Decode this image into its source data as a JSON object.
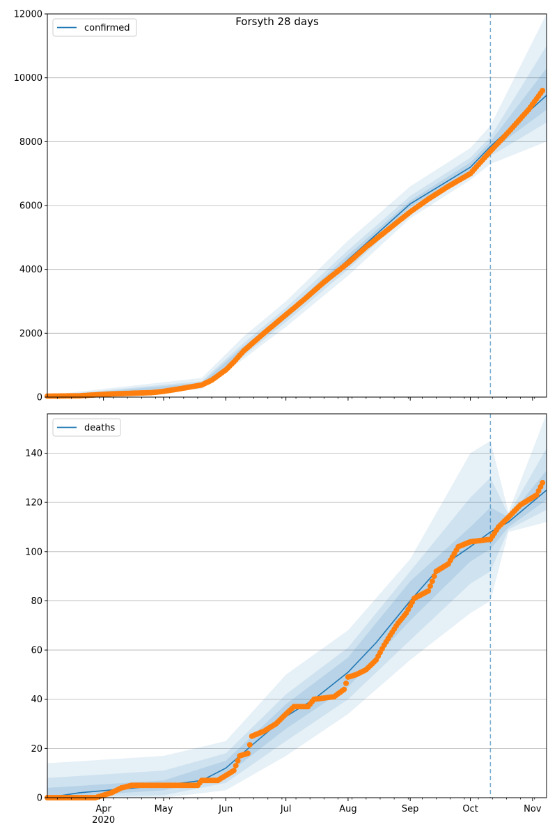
{
  "chart_data": [
    {
      "type": "line",
      "title": "Forsyth 28 days",
      "ylim": [
        0,
        12000
      ],
      "yticks": [
        0,
        2000,
        4000,
        6000,
        8000,
        10000,
        12000
      ],
      "x_ticks": [
        {
          "date": "2020-04-01",
          "label": "Apr"
        },
        {
          "date": "2020-05-01",
          "label": "May"
        },
        {
          "date": "2020-06-01",
          "label": "Jun"
        },
        {
          "date": "2020-07-01",
          "label": "Jul"
        },
        {
          "date": "2020-08-01",
          "label": "Aug"
        },
        {
          "date": "2020-09-01",
          "label": "Sep"
        },
        {
          "date": "2020-10-01",
          "label": "Oct"
        },
        {
          "date": "2020-11-01",
          "label": "Nov"
        }
      ],
      "year_label": "2020",
      "xlim": [
        "2020-03-04",
        "2020-11-08"
      ],
      "forecast_start": "2020-10-11",
      "grid": "horizontal",
      "legend": {
        "position": "top-left",
        "entries": [
          "confirmed"
        ]
      },
      "colors": {
        "line": "#1f77b4",
        "points": "#ff7f0e",
        "band": "#1f77b4"
      },
      "series": [
        {
          "name": "confirmed",
          "points": [
            [
              "2020-03-04",
              30
            ],
            [
              "2020-03-20",
              40
            ],
            [
              "2020-03-28",
              70
            ],
            [
              "2020-04-05",
              100
            ],
            [
              "2020-04-15",
              120
            ],
            [
              "2020-04-25",
              140
            ],
            [
              "2020-05-01",
              180
            ],
            [
              "2020-05-10",
              270
            ],
            [
              "2020-05-20",
              380
            ],
            [
              "2020-05-25",
              530
            ],
            [
              "2020-06-01",
              850
            ],
            [
              "2020-06-05",
              1100
            ],
            [
              "2020-06-10",
              1450
            ],
            [
              "2020-06-20",
              2000
            ],
            [
              "2020-07-01",
              2580
            ],
            [
              "2020-07-10",
              3050
            ],
            [
              "2020-07-20",
              3600
            ],
            [
              "2020-08-01",
              4200
            ],
            [
              "2020-08-10",
              4700
            ],
            [
              "2020-08-20",
              5200
            ],
            [
              "2020-09-01",
              5800
            ],
            [
              "2020-09-10",
              6200
            ],
            [
              "2020-09-20",
              6600
            ],
            [
              "2020-10-01",
              7000
            ],
            [
              "2020-10-11",
              7700
            ],
            [
              "2020-10-20",
              8300
            ],
            [
              "2020-10-30",
              9000
            ],
            [
              "2020-11-06",
              9600
            ]
          ]
        }
      ],
      "fit": [
        [
          "2020-03-04",
          10
        ],
        [
          "2020-04-01",
          60
        ],
        [
          "2020-05-01",
          200
        ],
        [
          "2020-05-20",
          400
        ],
        [
          "2020-06-01",
          900
        ],
        [
          "2020-06-10",
          1500
        ],
        [
          "2020-07-01",
          2550
        ],
        [
          "2020-08-01",
          4300
        ],
        [
          "2020-09-01",
          6050
        ],
        [
          "2020-10-01",
          7200
        ],
        [
          "2020-10-11",
          7850
        ],
        [
          "2020-11-08",
          9450
        ]
      ],
      "bands": [
        [
          [
            "2020-03-04",
            0,
            60
          ],
          [
            "2020-05-20",
            250,
            600
          ],
          [
            "2020-06-10",
            1200,
            1900
          ],
          [
            "2020-07-01",
            2200,
            3000
          ],
          [
            "2020-08-01",
            3800,
            4900
          ],
          [
            "2020-09-01",
            5600,
            6600
          ],
          [
            "2020-10-01",
            6800,
            7800
          ],
          [
            "2020-10-11",
            7300,
            8500
          ],
          [
            "2020-11-08",
            8000,
            12000
          ]
        ],
        [
          [
            "2020-03-04",
            0,
            40
          ],
          [
            "2020-05-20",
            300,
            500
          ],
          [
            "2020-06-10",
            1300,
            1700
          ],
          [
            "2020-07-01",
            2350,
            2800
          ],
          [
            "2020-08-01",
            4000,
            4600
          ],
          [
            "2020-09-01",
            5800,
            6300
          ],
          [
            "2020-10-01",
            7000,
            7500
          ],
          [
            "2020-10-11",
            7550,
            8150
          ],
          [
            "2020-11-08",
            8600,
            11000
          ]
        ],
        [
          [
            "2020-03-04",
            0,
            20
          ],
          [
            "2020-05-20",
            330,
            450
          ],
          [
            "2020-06-10",
            1400,
            1600
          ],
          [
            "2020-07-01",
            2450,
            2650
          ],
          [
            "2020-08-01",
            4150,
            4450
          ],
          [
            "2020-09-01",
            5950,
            6150
          ],
          [
            "2020-10-01",
            7100,
            7350
          ],
          [
            "2020-10-11",
            7700,
            8000
          ],
          [
            "2020-11-08",
            9000,
            10300
          ]
        ]
      ]
    },
    {
      "type": "line",
      "title": "",
      "ylim": [
        0,
        156
      ],
      "yticks": [
        0,
        20,
        40,
        60,
        80,
        100,
        120,
        140
      ],
      "x_ticks": [
        {
          "date": "2020-04-01",
          "label": "Apr"
        },
        {
          "date": "2020-05-01",
          "label": "May"
        },
        {
          "date": "2020-06-01",
          "label": "Jun"
        },
        {
          "date": "2020-07-01",
          "label": "Jul"
        },
        {
          "date": "2020-08-01",
          "label": "Aug"
        },
        {
          "date": "2020-09-01",
          "label": "Sep"
        },
        {
          "date": "2020-10-01",
          "label": "Oct"
        },
        {
          "date": "2020-11-01",
          "label": "Nov"
        }
      ],
      "year_label": "2020",
      "xlim": [
        "2020-03-04",
        "2020-11-08"
      ],
      "forecast_start": "2020-10-11",
      "grid": "horizontal",
      "legend": {
        "position": "top-left",
        "entries": [
          "deaths"
        ]
      },
      "colors": {
        "line": "#1f77b4",
        "points": "#ff7f0e",
        "band": "#1f77b4"
      },
      "series": [
        {
          "name": "deaths",
          "points": [
            [
              "2020-03-04",
              0
            ],
            [
              "2020-03-28",
              0
            ],
            [
              "2020-04-05",
              2
            ],
            [
              "2020-04-10",
              4
            ],
            [
              "2020-04-15",
              5
            ],
            [
              "2020-05-18",
              5
            ],
            [
              "2020-05-20",
              7
            ],
            [
              "2020-05-28",
              7
            ],
            [
              "2020-06-05",
              11
            ],
            [
              "2020-06-08",
              17
            ],
            [
              "2020-06-12",
              18
            ],
            [
              "2020-06-14",
              25
            ],
            [
              "2020-06-20",
              27
            ],
            [
              "2020-06-26",
              30
            ],
            [
              "2020-07-01",
              34
            ],
            [
              "2020-07-05",
              37
            ],
            [
              "2020-07-12",
              37
            ],
            [
              "2020-07-15",
              40
            ],
            [
              "2020-07-25",
              41
            ],
            [
              "2020-07-30",
              44
            ],
            [
              "2020-08-01",
              49
            ],
            [
              "2020-08-05",
              50
            ],
            [
              "2020-08-10",
              52
            ],
            [
              "2020-08-15",
              56
            ],
            [
              "2020-08-19",
              62
            ],
            [
              "2020-08-22",
              66
            ],
            [
              "2020-08-26",
              71
            ],
            [
              "2020-08-30",
              75
            ],
            [
              "2020-09-03",
              81
            ],
            [
              "2020-09-10",
              84
            ],
            [
              "2020-09-14",
              92
            ],
            [
              "2020-09-20",
              95
            ],
            [
              "2020-09-25",
              102
            ],
            [
              "2020-10-01",
              104
            ],
            [
              "2020-10-11",
              105
            ],
            [
              "2020-10-15",
              110
            ],
            [
              "2020-10-20",
              114
            ],
            [
              "2020-10-26",
              119
            ],
            [
              "2020-10-30",
              121
            ],
            [
              "2020-11-03",
              123
            ],
            [
              "2020-11-06",
              128
            ]
          ]
        }
      ],
      "fit": [
        [
          "2020-03-04",
          0
        ],
        [
          "2020-03-20",
          2
        ],
        [
          "2020-05-01",
          5
        ],
        [
          "2020-05-20",
          7
        ],
        [
          "2020-06-01",
          12
        ],
        [
          "2020-06-15",
          22
        ],
        [
          "2020-07-01",
          33
        ],
        [
          "2020-07-15",
          40
        ],
        [
          "2020-08-01",
          51
        ],
        [
          "2020-08-15",
          63
        ],
        [
          "2020-09-01",
          80
        ],
        [
          "2020-09-15",
          93
        ],
        [
          "2020-10-01",
          102
        ],
        [
          "2020-10-11",
          108
        ],
        [
          "2020-10-20",
          112
        ],
        [
          "2020-11-08",
          125
        ]
      ],
      "bands": [
        [
          [
            "2020-03-04",
            0,
            14
          ],
          [
            "2020-05-01",
            0,
            17
          ],
          [
            "2020-06-01",
            3,
            23
          ],
          [
            "2020-07-01",
            17,
            50
          ],
          [
            "2020-08-01",
            34,
            68
          ],
          [
            "2020-09-01",
            56,
            97
          ],
          [
            "2020-10-01",
            75,
            140
          ],
          [
            "2020-10-11",
            80,
            145
          ],
          [
            "2020-10-20",
            108,
            116
          ],
          [
            "2020-11-08",
            112,
            156
          ]
        ],
        [
          [
            "2020-03-04",
            0,
            8
          ],
          [
            "2020-05-01",
            1,
            11
          ],
          [
            "2020-06-01",
            6,
            18
          ],
          [
            "2020-07-01",
            23,
            42
          ],
          [
            "2020-08-01",
            40,
            61
          ],
          [
            "2020-09-01",
            64,
            92
          ],
          [
            "2020-10-01",
            87,
            122
          ],
          [
            "2020-10-11",
            92,
            130
          ],
          [
            "2020-10-20",
            109,
            115
          ],
          [
            "2020-11-08",
            117,
            142
          ]
        ],
        [
          [
            "2020-03-04",
            0,
            4
          ],
          [
            "2020-05-01",
            3,
            7
          ],
          [
            "2020-06-01",
            9,
            15
          ],
          [
            "2020-07-01",
            28,
            38
          ],
          [
            "2020-08-01",
            45,
            57
          ],
          [
            "2020-09-01",
            72,
            88
          ],
          [
            "2020-10-01",
            96,
            110
          ],
          [
            "2020-10-11",
            101,
            118
          ],
          [
            "2020-10-20",
            110,
            114
          ],
          [
            "2020-11-08",
            121,
            133
          ]
        ]
      ]
    }
  ]
}
